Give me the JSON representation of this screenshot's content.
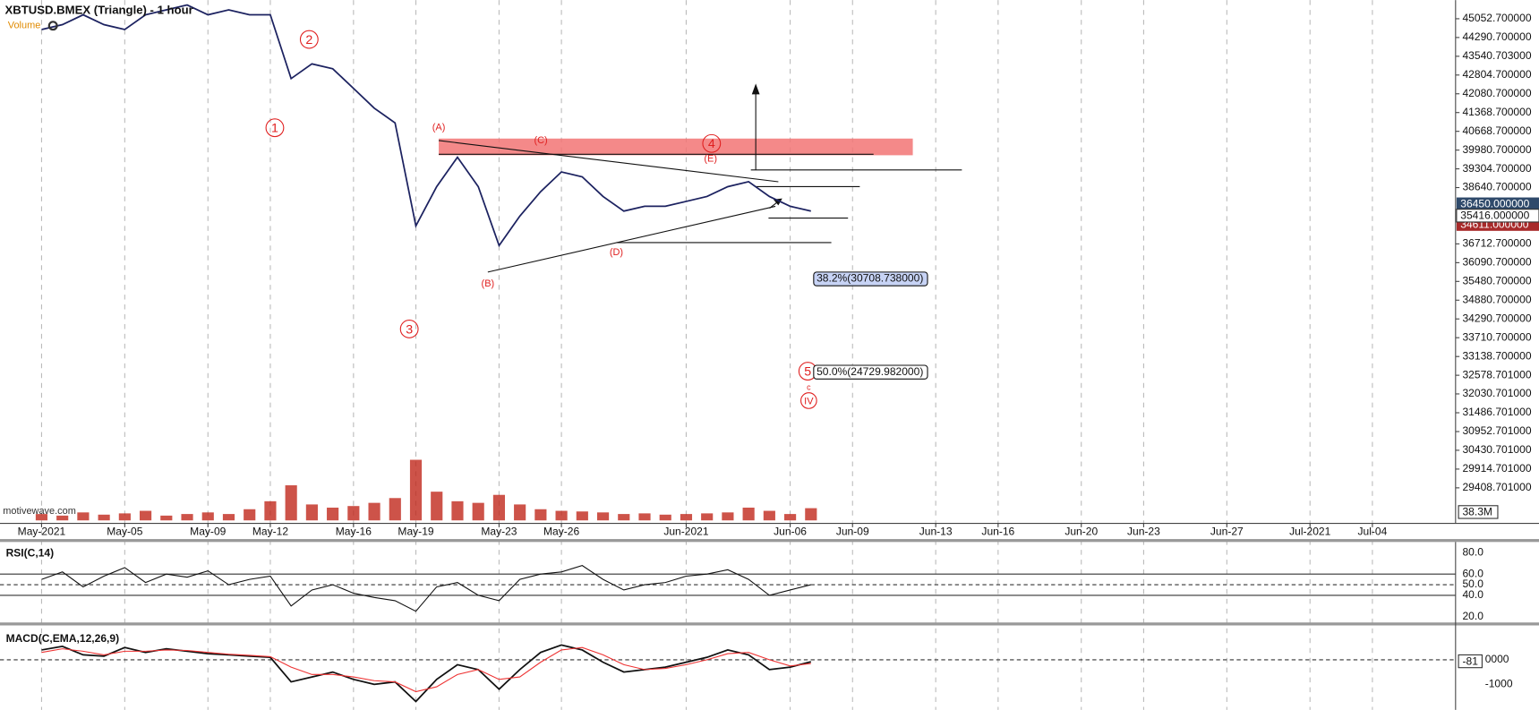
{
  "header": {
    "symbol": "XBTUSD.BMEX (Triangle) - 1 hour",
    "volume_label": "Volume",
    "watermark": "motivewave.com"
  },
  "chart_data": {
    "type": "line",
    "log_scale": true,
    "grid": true,
    "x": [
      "2021-05-01",
      "2021-05-02",
      "2021-05-03",
      "2021-05-04",
      "2021-05-05",
      "2021-05-06",
      "2021-05-07",
      "2021-05-08",
      "2021-05-09",
      "2021-05-10",
      "2021-05-11",
      "2021-05-12",
      "2021-05-13",
      "2021-05-14",
      "2021-05-15",
      "2021-05-16",
      "2021-05-17",
      "2021-05-18",
      "2021-05-19",
      "2021-05-20",
      "2021-05-21",
      "2021-05-22",
      "2021-05-23",
      "2021-05-24",
      "2021-05-25",
      "2021-05-26",
      "2021-05-27",
      "2021-05-28",
      "2021-05-29",
      "2021-05-30",
      "2021-05-31",
      "2021-06-01",
      "2021-06-02",
      "2021-06-03",
      "2021-06-04",
      "2021-06-05",
      "2021-06-06",
      "2021-06-07"
    ],
    "series": [
      {
        "color": "#1c2260",
        "values": [
          44612,
          44812,
          45214,
          44812,
          44612,
          45214,
          45416,
          45620,
          45214,
          45416,
          45214,
          45214,
          42665,
          43241,
          43048,
          42287,
          41534,
          40984,
          37318,
          38673,
          39723,
          38673,
          36655,
          37650,
          38497,
          39196,
          39020,
          38331,
          37822,
          37988,
          37988,
          38160,
          38331,
          38673,
          38849,
          38331,
          37988,
          37822
        ]
      }
    ],
    "xlim": [
      "2021-04-29",
      "2021-07-08"
    ],
    "xticks": [
      {
        "value": "2021-05-01",
        "label": "May-2021"
      },
      {
        "value": "2021-05-05",
        "label": "May-05"
      },
      {
        "value": "2021-05-09",
        "label": "May-09"
      },
      {
        "value": "2021-05-12",
        "label": "May-12"
      },
      {
        "value": "2021-05-16",
        "label": "May-16"
      },
      {
        "value": "2021-05-19",
        "label": "May-19"
      },
      {
        "value": "2021-05-23",
        "label": "May-23"
      },
      {
        "value": "2021-05-26",
        "label": "May-26"
      },
      {
        "value": "2021-06-01",
        "label": "Jun-2021"
      },
      {
        "value": "2021-06-06",
        "label": "Jun-06"
      },
      {
        "value": "2021-06-09",
        "label": "Jun-09"
      },
      {
        "value": "2021-06-13",
        "label": "Jun-13"
      },
      {
        "value": "2021-06-16",
        "label": "Jun-16"
      },
      {
        "value": "2021-06-20",
        "label": "Jun-20"
      },
      {
        "value": "2021-06-23",
        "label": "Jun-23"
      },
      {
        "value": "2021-06-27",
        "label": "Jun-27"
      },
      {
        "value": "2021-07-01",
        "label": "Jul-2021"
      },
      {
        "value": "2021-07-04",
        "label": "Jul-04"
      }
    ],
    "ylim": [
      28551,
      45820
    ],
    "yticks": [
      {
        "value": 45052.7,
        "label": "45052.700000"
      },
      {
        "value": 44290.7,
        "label": "44290.700000"
      },
      {
        "value": 43540.703,
        "label": "43540.703000"
      },
      {
        "value": 42804.7,
        "label": "42804.700000"
      },
      {
        "value": 42080.7,
        "label": "42080.700000"
      },
      {
        "value": 41368.7,
        "label": "41368.700000"
      },
      {
        "value": 40668.7,
        "label": "40668.700000"
      },
      {
        "value": 39980.7,
        "label": "39980.700000"
      },
      {
        "value": 39304.7,
        "label": "39304.700000"
      },
      {
        "value": 38640.7,
        "label": "38640.700000"
      },
      {
        "value": 36712.7,
        "label": "36712.700000"
      },
      {
        "value": 36090.7,
        "label": "36090.700000"
      },
      {
        "value": 35480.7,
        "label": "35480.700000"
      },
      {
        "value": 34880.7,
        "label": "34880.700000"
      },
      {
        "value": 34290.7,
        "label": "34290.700000"
      },
      {
        "value": 33710.7,
        "label": "33710.700000"
      },
      {
        "value": 33138.7,
        "label": "33138.700000"
      },
      {
        "value": 32578.701,
        "label": "32578.701000"
      },
      {
        "value": 32030.701,
        "label": "32030.701000"
      },
      {
        "value": 31486.701,
        "label": "31486.701000"
      },
      {
        "value": 30952.701,
        "label": "30952.701000"
      },
      {
        "value": 30430.701,
        "label": "30430.701000"
      },
      {
        "value": 29914.701,
        "label": "29914.701000"
      },
      {
        "value": 29408.701,
        "label": "29408.701000"
      }
    ],
    "price_labels": [
      {
        "value": 36450,
        "label": "36450.000000"
      },
      {
        "value": 35416,
        "label": "35416.000000"
      },
      {
        "value": 34611,
        "label": "34611.000000"
      }
    ],
    "volume": {
      "color": "#c0281c",
      "ylim": [
        0,
        400
      ],
      "values": [
        20,
        15,
        25,
        18,
        22,
        30,
        15,
        20,
        25,
        20,
        35,
        60,
        110,
        50,
        40,
        45,
        55,
        70,
        190,
        90,
        60,
        55,
        80,
        50,
        35,
        30,
        28,
        25,
        20,
        22,
        18,
        20,
        22,
        25,
        40,
        30,
        20,
        38.3
      ],
      "current": 38.3,
      "current_label": "38.3M"
    },
    "waves": [
      "1",
      "2",
      "3",
      "4",
      "5"
    ],
    "abc": [
      "(A)",
      "(B)",
      "(C)",
      "(D)",
      "(E)"
    ],
    "minor": "c",
    "degree": "IV",
    "fibs": [
      "38.2%(30708.738000)",
      "50.0%(24729.982000)"
    ],
    "rsi": {
      "title": "RSI(C,14)",
      "color": "#111",
      "ylim": [
        15.4,
        89.2
      ],
      "yticks": [
        {
          "value": 80,
          "label": "80.0"
        },
        {
          "value": 60,
          "label": "60.0"
        },
        {
          "value": 50,
          "label": "50.0"
        },
        {
          "value": 40,
          "label": "40.0"
        },
        {
          "value": 20,
          "label": "20.0"
        }
      ],
      "values": [
        55,
        62,
        48,
        58,
        66,
        52,
        60,
        57,
        63,
        50,
        55,
        58,
        30,
        45,
        50,
        42,
        38,
        35,
        25,
        48,
        52,
        40,
        35,
        55,
        60,
        62,
        68,
        55,
        45,
        50,
        52,
        58,
        60,
        64,
        55,
        40,
        45,
        50
      ]
    },
    "macd": {
      "title": "MACD(C,EMA,12,26,9)",
      "ylim": [
        -2040,
        1280
      ],
      "yticks": [
        {
          "value": 0,
          "label": "0000"
        },
        {
          "value": -1000,
          "label": "-1000"
        }
      ],
      "current": -81,
      "series": [
        {
          "color": "#111",
          "values": [
            400,
            550,
            200,
            150,
            500,
            300,
            450,
            350,
            250,
            200,
            150,
            100,
            -900,
            -700,
            -500,
            -800,
            -1000,
            -900,
            -1700,
            -800,
            -200,
            -400,
            -1200,
            -400,
            300,
            600,
            400,
            -100,
            -500,
            -400,
            -300,
            -100,
            100,
            400,
            200,
            -400,
            -300,
            -81
          ]
        },
        {
          "color": "#e33",
          "values": [
            300,
            450,
            350,
            200,
            350,
            350,
            400,
            380,
            300,
            230,
            180,
            130,
            -300,
            -600,
            -600,
            -700,
            -850,
            -900,
            -1300,
            -1100,
            -600,
            -400,
            -800,
            -700,
            -100,
            400,
            500,
            200,
            -200,
            -400,
            -350,
            -200,
            0,
            250,
            300,
            0,
            -250,
            -150
          ]
        }
      ]
    }
  }
}
